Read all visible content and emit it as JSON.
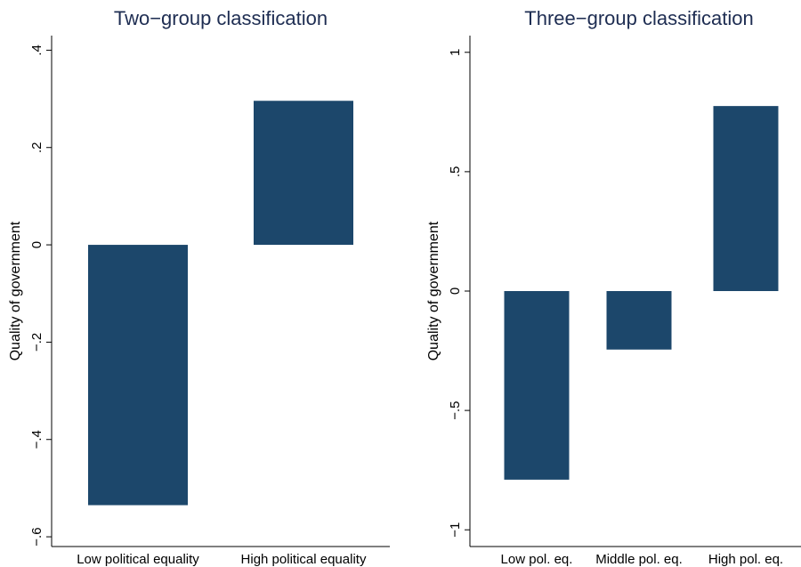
{
  "chart_data": [
    {
      "type": "bar",
      "title": "Two−group classification",
      "xlabel": "",
      "ylabel": "Quality of government",
      "categories": [
        "Low political equality",
        "High political equality"
      ],
      "values": [
        -0.535,
        0.296
      ],
      "ylim": [
        -0.62,
        0.43
      ],
      "yticks": [
        -0.6,
        -0.4,
        -0.2,
        0,
        0.2,
        0.4
      ],
      "ytick_labels": [
        "−.6",
        "−.4",
        "−.2",
        "0",
        ".2",
        ".4"
      ],
      "bar_color": "#1c476b",
      "grid": false
    },
    {
      "type": "bar",
      "title": "Three−group classification",
      "xlabel": "",
      "ylabel": "Quality of government",
      "categories": [
        "Low pol. eq.",
        "Middle pol. eq.",
        "High pol. eq."
      ],
      "values": [
        -0.79,
        -0.245,
        0.775
      ],
      "ylim": [
        -1.07,
        1.07
      ],
      "yticks": [
        -1,
        -0.5,
        0,
        0.5,
        1
      ],
      "ytick_labels": [
        "−1",
        "−.5",
        "0",
        ".5",
        "1"
      ],
      "bar_color": "#1c476b",
      "grid": false
    }
  ]
}
